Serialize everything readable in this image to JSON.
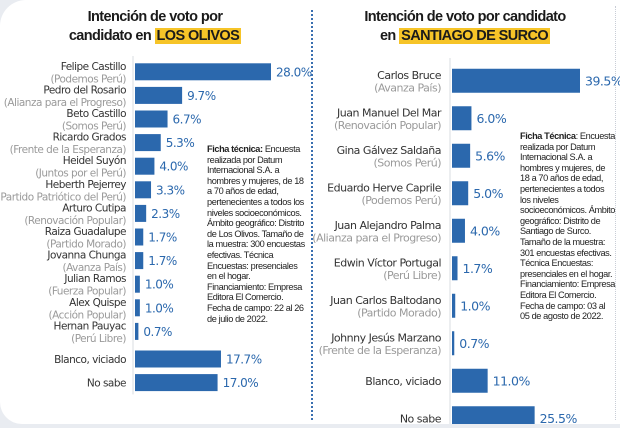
{
  "colors": {
    "bar": "#2b68ad",
    "value_label": "#2b68ad",
    "name": "#333333",
    "party": "#9a9a9a",
    "highlight": "#f6c428",
    "axis": "#d8dce2"
  },
  "chart_data": [
    {
      "type": "bar",
      "orientation": "horizontal",
      "title_line1": "Intención de voto por",
      "title_line2_prefix": "candidato en",
      "title_highlight": "LOS OLIVOS",
      "categories": [
        {
          "name": "Felipe Castillo",
          "party": "(Podemos Perú)"
        },
        {
          "name": "Pedro del Rosario",
          "party": "(Alianza para el Progreso)"
        },
        {
          "name": "Beto Castillo",
          "party": "(Somos Perú)"
        },
        {
          "name": "Ricardo Grados",
          "party": "(Frente de la Esperanza)"
        },
        {
          "name": "Heidel Suyón",
          "party": "(Juntos por el Perú)"
        },
        {
          "name": "Heberth Pejerrey",
          "party": "(Partido Patriótico del Perú)"
        },
        {
          "name": "Arturo Cutipa",
          "party": "(Renovación Popular)"
        },
        {
          "name": "Raiza Guadalupe",
          "party": "(Partido Morado)"
        },
        {
          "name": "Jovanna Chunga",
          "party": "(Avanza País)"
        },
        {
          "name": "Julian Ramos",
          "party": "(Fuerza Popular)"
        },
        {
          "name": "Alex Quispe",
          "party": "(Acción Popular)"
        },
        {
          "name": "Hernan Pauyac",
          "party": "(Perú Libre)"
        },
        {
          "name": "Blanco, viciado",
          "party": ""
        },
        {
          "name": "No sabe",
          "party": ""
        }
      ],
      "values": [
        28.0,
        9.7,
        6.7,
        5.3,
        4.0,
        3.3,
        2.3,
        1.7,
        1.7,
        1.0,
        1.0,
        0.7,
        17.7,
        17.0
      ],
      "value_labels": [
        "28.0%",
        "9.7%",
        "6.7%",
        "5.3%",
        "4.0%",
        "3.3%",
        "2.3%",
        "1.7%",
        "1.7%",
        "1.0%",
        "1.0%",
        "0.7%",
        "17.7%",
        "17.0%"
      ],
      "unit": "%",
      "xlim": [
        0,
        28
      ],
      "grid": false
    },
    {
      "type": "bar",
      "orientation": "horizontal",
      "title_line1": "Intención de voto por candidato",
      "title_line2_prefix": "en",
      "title_highlight": "SANTIAGO DE SURCO",
      "categories": [
        {
          "name": "Carlos Bruce",
          "party": "(Avanza País)"
        },
        {
          "name": "Juan Manuel Del Mar",
          "party": "(Renovación Popular)"
        },
        {
          "name": "Gina Gálvez Saldaña",
          "party": "(Somos Perú)"
        },
        {
          "name": "Eduardo Herve Caprile",
          "party": "(Podemos Perú)"
        },
        {
          "name": "Juan Alejandro Palma",
          "party": "(Alianza para el Progreso)"
        },
        {
          "name": "Edwin Víctor Portugal",
          "party": "(Perú Libre)"
        },
        {
          "name": "Juan Carlos Baltodano",
          "party": "(Partido Morado)"
        },
        {
          "name": "Johnny Jesús Marzano",
          "party": "(Frente de la Esperanza)"
        },
        {
          "name": "Blanco, viciado",
          "party": ""
        },
        {
          "name": "No sabe",
          "party": ""
        }
      ],
      "values": [
        39.5,
        6.0,
        5.6,
        5.0,
        4.0,
        1.7,
        1.0,
        0.7,
        11.0,
        25.5
      ],
      "value_labels": [
        "39.5%",
        "6.0%",
        "5.6%",
        "5.0%",
        "4.0%",
        "1.7%",
        "1.0%",
        "0.7%",
        "11.0%",
        "25.5%"
      ],
      "unit": "%",
      "xlim": [
        0,
        39.5
      ],
      "grid": false
    }
  ],
  "ficha": [
    {
      "label": "Ficha técnica:",
      "text": " Encuesta realizada por Datum Internacional S.A. a hombres y mujeres, de 18 a 70 años de edad, pertenecientes a todos los niveles socioeconómicos. Ámbito geográfico: Distrito de Los Olivos. Tamaño de la muestra: 300 encuestas efectivas. Técnica Encuestas: presenciales en el hogar. Financiamiento: Empresa Editora El Comercio. Fecha de campo: 22 al 26 de julio de 2022."
    },
    {
      "label": "Ficha Técnica",
      "text": ": Encuesta realizada por Datum Internacional S.A. a hombres y mujeres, de 18 a 70 años de edad, pertenecientes a todos los niveles socioeconómicos. Ámbito geográfico: Distrito de Santiago de Surco. Tamaño de la muestra: 301 encuestas efectivas. Técnica Encuestas: presenciales en el hogar. Financiamiento: Empresa Editora El Comercio. Fecha de campo: 03 al 05 de agosto de 2022."
    }
  ]
}
